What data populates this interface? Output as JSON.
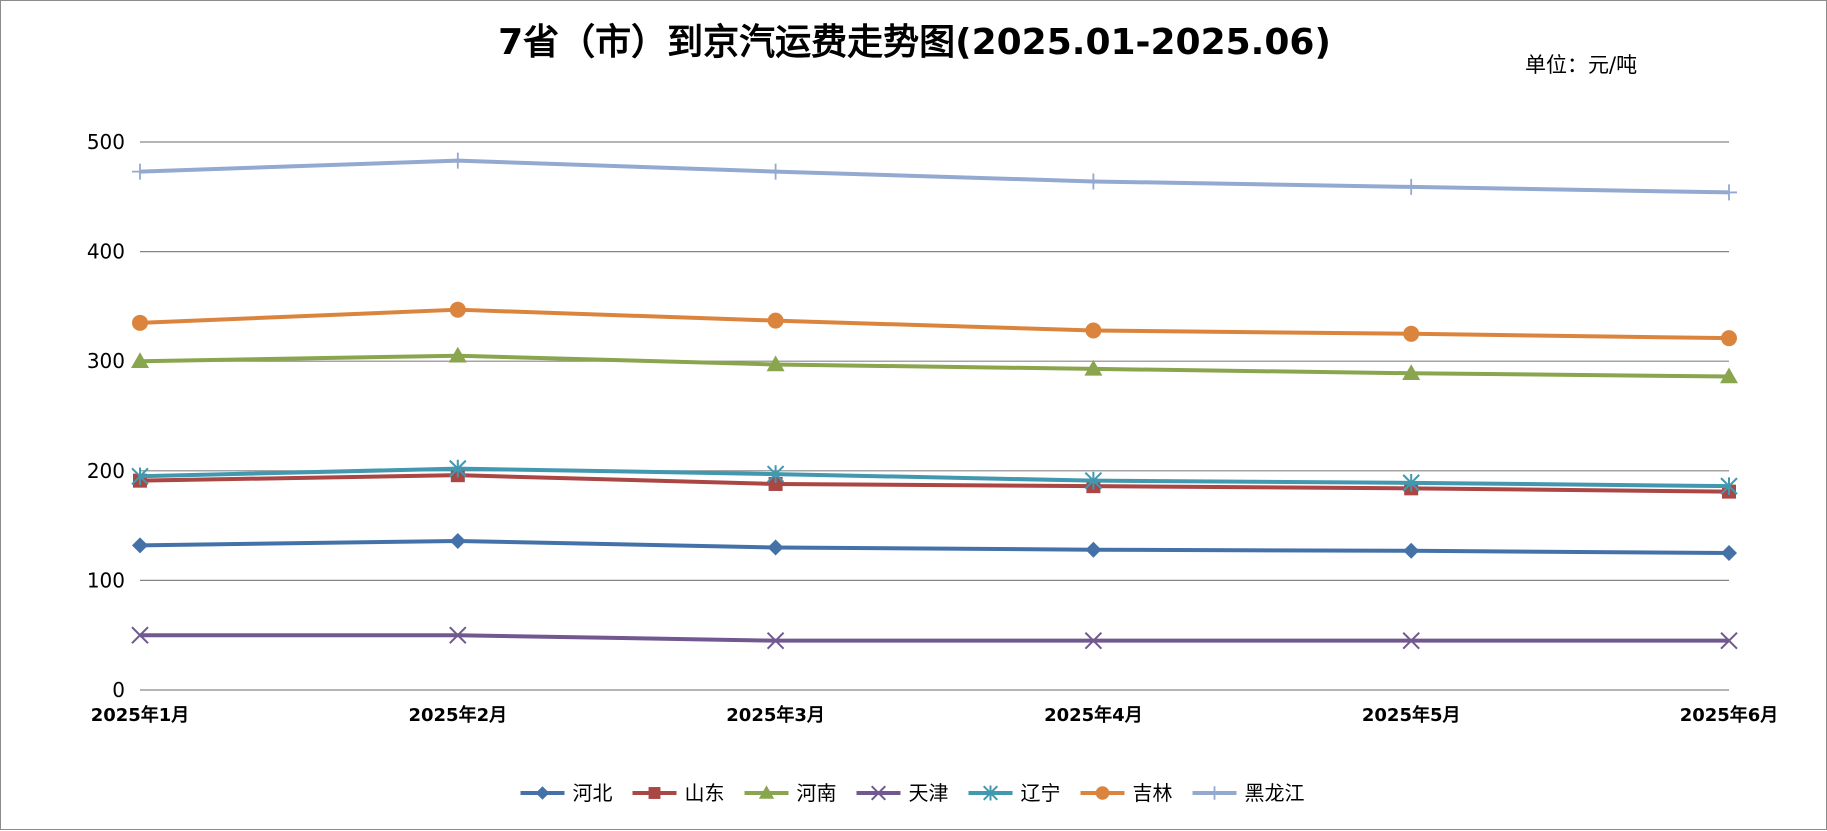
{
  "chart_data": {
    "type": "line",
    "title": "7省（市）到京汽运费走势图(2025.01-2025.06)",
    "unit_label": "单位：元/吨",
    "categories": [
      "2025年1月",
      "2025年2月",
      "2025年3月",
      "2025年4月",
      "2025年5月",
      "2025年6月"
    ],
    "ylim": [
      0,
      500
    ],
    "yticks": [
      0,
      100,
      200,
      300,
      400,
      500
    ],
    "grid": true,
    "legend_position": "bottom",
    "series": [
      {
        "name": "河北",
        "color": "#4472A8",
        "marker": "diamond",
        "values": [
          132,
          136,
          130,
          128,
          127,
          125
        ]
      },
      {
        "name": "山东",
        "color": "#AA4643",
        "marker": "square",
        "values": [
          191,
          196,
          188,
          186,
          184,
          181
        ]
      },
      {
        "name": "河南",
        "color": "#89A54E",
        "marker": "triangle",
        "values": [
          300,
          305,
          297,
          293,
          289,
          286
        ]
      },
      {
        "name": "天津",
        "color": "#71588F",
        "marker": "x",
        "values": [
          50,
          50,
          45,
          45,
          45,
          45
        ]
      },
      {
        "name": "辽宁",
        "color": "#4198AF",
        "marker": "star",
        "values": [
          195,
          202,
          197,
          191,
          189,
          186
        ]
      },
      {
        "name": "吉林",
        "color": "#DB843D",
        "marker": "circle",
        "values": [
          335,
          347,
          337,
          328,
          325,
          321
        ]
      },
      {
        "name": "黑龙江",
        "color": "#93A9CF",
        "marker": "plus",
        "values": [
          473,
          483,
          473,
          464,
          459,
          454
        ]
      }
    ]
  }
}
